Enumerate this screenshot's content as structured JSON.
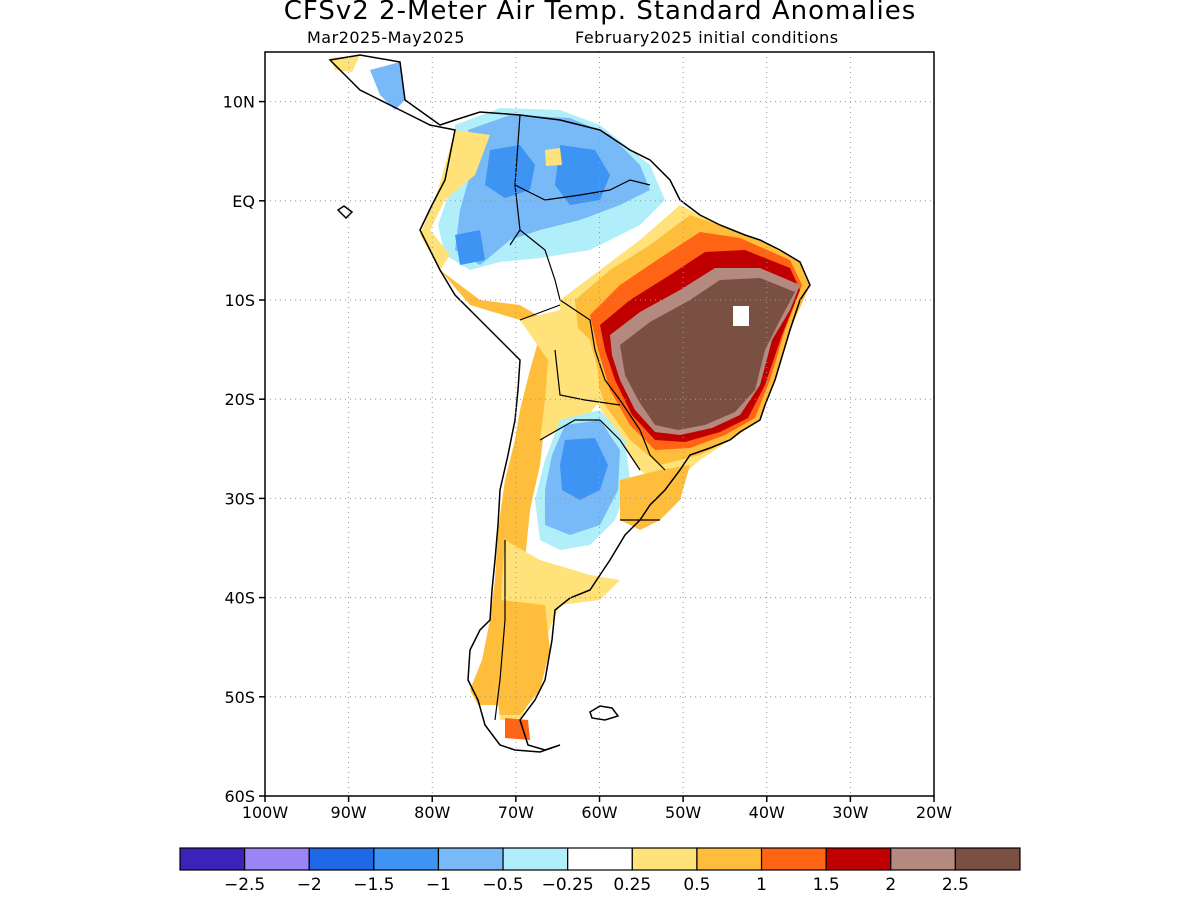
{
  "title": "CFSv2 2-Meter Air Temp. Standard Anomalies",
  "subtitle_left": "Mar2025-May2025",
  "subtitle_right": "February2025 initial conditions",
  "map": {
    "lon_range": [
      -100,
      -20
    ],
    "lat_range": [
      -60,
      15
    ],
    "lat_ticks": [
      {
        "value": 10,
        "label": "10N"
      },
      {
        "value": 0,
        "label": "EQ"
      },
      {
        "value": -10,
        "label": "10S"
      },
      {
        "value": -20,
        "label": "20S"
      },
      {
        "value": -30,
        "label": "30S"
      },
      {
        "value": -40,
        "label": "40S"
      },
      {
        "value": -50,
        "label": "50S"
      },
      {
        "value": -60,
        "label": "60S"
      }
    ],
    "lon_ticks": [
      {
        "value": -100,
        "label": "100W"
      },
      {
        "value": -90,
        "label": "90W"
      },
      {
        "value": -80,
        "label": "80W"
      },
      {
        "value": -70,
        "label": "70W"
      },
      {
        "value": -60,
        "label": "60W"
      },
      {
        "value": -50,
        "label": "50W"
      },
      {
        "value": -40,
        "label": "40W"
      },
      {
        "value": -30,
        "label": "30W"
      },
      {
        "value": -20,
        "label": "20W"
      }
    ],
    "grid": "dotted"
  },
  "legend": {
    "colors": [
      "#3b22b8",
      "#9b85f5",
      "#2069e6",
      "#3d94f2",
      "#78b9f7",
      "#b0eefa",
      "#ffffff",
      "#ffe27a",
      "#ffbd3c",
      "#ff6414",
      "#c00000",
      "#b48a80",
      "#7a5042"
    ],
    "labels": [
      "-2.5",
      "-2",
      "-1.5",
      "-1",
      "-0.5",
      "-0.25",
      "0.25",
      "0.5",
      "1",
      "1.5",
      "2",
      "2.5"
    ]
  }
}
